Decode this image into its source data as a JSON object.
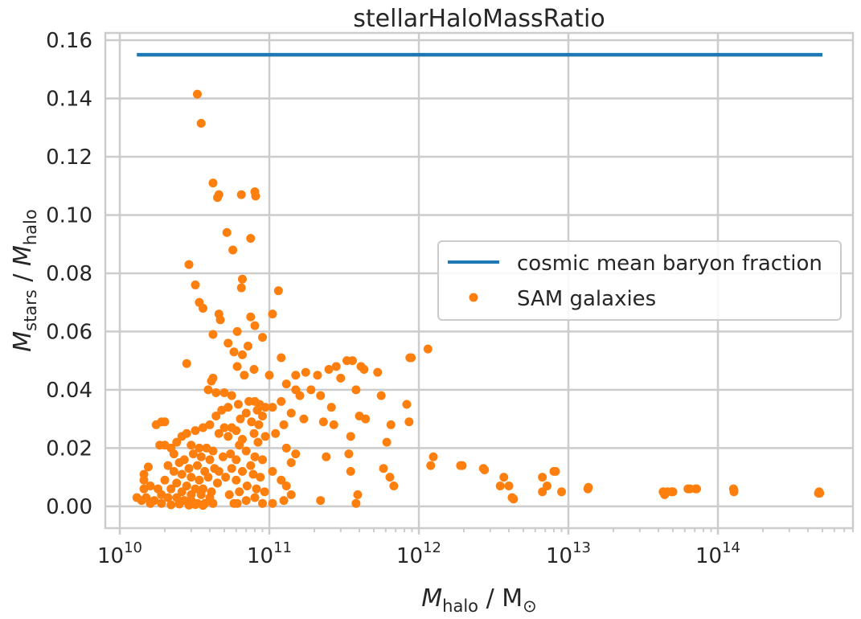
{
  "chart_data": {
    "type": "scatter",
    "title": "stellarHaloMassRatio",
    "xlabel": {
      "main": "M",
      "sub": "halo",
      "rest": " / M",
      "sun": "⊙"
    },
    "ylabel": {
      "main": "M",
      "sub1": "stars",
      "mid": " / ",
      "main2": "M",
      "sub2": "halo"
    },
    "x_scale": "log",
    "xlim": [
      8000000000.0,
      800000000000000.0
    ],
    "ylim": [
      -0.0075,
      0.1625
    ],
    "x_tick_labels": [
      {
        "base": "10",
        "exp": "10",
        "value": 10000000000.0
      },
      {
        "base": "10",
        "exp": "11",
        "value": 100000000000.0
      },
      {
        "base": "10",
        "exp": "12",
        "value": 1000000000000.0
      },
      {
        "base": "10",
        "exp": "13",
        "value": 10000000000000.0
      },
      {
        "base": "10",
        "exp": "14",
        "value": 100000000000000.0
      }
    ],
    "y_ticks": [
      0.0,
      0.02,
      0.04,
      0.06,
      0.08,
      0.1,
      0.12,
      0.14,
      0.16
    ],
    "y_tick_labels": [
      "0.00",
      "0.02",
      "0.04",
      "0.06",
      "0.08",
      "0.10",
      "0.12",
      "0.14",
      "0.16"
    ],
    "grid": true,
    "legend_position": "center-right",
    "series": [
      {
        "name": "cosmic mean baryon fraction",
        "kind": "line",
        "color": "#1f77b4",
        "x": [
          13000000000.0,
          500000000000000.0
        ],
        "y": [
          0.155,
          0.155
        ]
      },
      {
        "name": "SAM galaxies",
        "kind": "scatter",
        "color": "#ff7f0e",
        "points": [
          [
            33000000000.0,
            0.1415
          ],
          [
            35000000000.0,
            0.1315
          ],
          [
            42000000000.0,
            0.111
          ],
          [
            45000000000.0,
            0.106
          ],
          [
            46000000000.0,
            0.107
          ],
          [
            65000000000.0,
            0.107
          ],
          [
            80000000000.0,
            0.108
          ],
          [
            81000000000.0,
            0.1065
          ],
          [
            52000000000.0,
            0.094
          ],
          [
            75000000000.0,
            0.092
          ],
          [
            57000000000.0,
            0.088
          ],
          [
            29000000000.0,
            0.083
          ],
          [
            32000000000.0,
            0.076
          ],
          [
            66000000000.0,
            0.078
          ],
          [
            65000000000.0,
            0.075
          ],
          [
            34000000000.0,
            0.07
          ],
          [
            36000000000.0,
            0.068
          ],
          [
            115000000000.0,
            0.074
          ],
          [
            105000000000.0,
            0.066
          ],
          [
            46000000000.0,
            0.066
          ],
          [
            47000000000.0,
            0.064
          ],
          [
            75000000000.0,
            0.065
          ],
          [
            80000000000.0,
            0.062
          ],
          [
            42000000000.0,
            0.059
          ],
          [
            61000000000.0,
            0.06
          ],
          [
            90000000000.0,
            0.058
          ],
          [
            53000000000.0,
            0.056
          ],
          [
            72000000000.0,
            0.055
          ],
          [
            58000000000.0,
            0.053
          ],
          [
            66000000000.0,
            0.052
          ],
          [
            28000000000.0,
            0.049
          ],
          [
            61000000000.0,
            0.048
          ],
          [
            42000000000.0,
            0.044
          ],
          [
            41000000000.0,
            0.043
          ],
          [
            39000000000.0,
            0.04
          ],
          [
            44000000000.0,
            0.039
          ],
          [
            120000000000.0,
            0.051
          ],
          [
            100000000000.0,
            0.045
          ],
          [
            68000000000.0,
            0.045
          ],
          [
            79000000000.0,
            0.047
          ],
          [
            150000000000.0,
            0.045
          ],
          [
            175000000000.0,
            0.046
          ],
          [
            210000000000.0,
            0.045
          ],
          [
            250000000000.0,
            0.047
          ],
          [
            280000000000.0,
            0.048
          ],
          [
            330000000000.0,
            0.05
          ],
          [
            360000000000.0,
            0.05
          ],
          [
            410000000000.0,
            0.048
          ],
          [
            430000000000.0,
            0.047
          ],
          [
            530000000000.0,
            0.046
          ],
          [
            1150000000000.0,
            0.054
          ],
          [
            890000000000.0,
            0.051
          ],
          [
            870000000000.0,
            0.051
          ],
          [
            560000000000.0,
            0.038
          ],
          [
            830000000000.0,
            0.035
          ],
          [
            650000000000.0,
            0.028
          ],
          [
            860000000000.0,
            0.029
          ],
          [
            300000000000.0,
            0.044
          ],
          [
            380000000000.0,
            0.04
          ],
          [
            220000000000.0,
            0.038
          ],
          [
            260000000000.0,
            0.034
          ],
          [
            400000000000.0,
            0.031
          ],
          [
            440000000000.0,
            0.03
          ],
          [
            350000000000.0,
            0.024
          ],
          [
            610000000000.0,
            0.022
          ],
          [
            130000000000.0,
            0.042
          ],
          [
            150000000000.0,
            0.04
          ],
          [
            190000000000.0,
            0.04
          ],
          [
            160000000000.0,
            0.038
          ],
          [
            120000000000.0,
            0.036
          ],
          [
            105000000000.0,
            0.034
          ],
          [
            140000000000.0,
            0.032
          ],
          [
            170000000000.0,
            0.03
          ],
          [
            125000000000.0,
            0.028
          ],
          [
            110000000000.0,
            0.025
          ],
          [
            230000000000.0,
            0.029
          ],
          [
            270000000000.0,
            0.028
          ],
          [
            130000000000.0,
            0.02
          ],
          [
            150000000000.0,
            0.018
          ],
          [
            140000000000.0,
            0.015
          ],
          [
            240000000000.0,
            0.017
          ],
          [
            105000000000.0,
            0.012
          ],
          [
            120000000000.0,
            0.009
          ],
          [
            130000000000.0,
            0.007
          ],
          [
            140000000000.0,
            0.004
          ],
          [
            125000000000.0,
            0.002
          ],
          [
            105000000000.0,
            0.001
          ],
          [
            220000000000.0,
            0.002
          ],
          [
            390000000000.0,
            0.004
          ],
          [
            380000000000.0,
            0.001
          ],
          [
            580000000000.0,
            0.013
          ],
          [
            640000000000.0,
            0.01
          ],
          [
            680000000000.0,
            0.007
          ],
          [
            340000000000.0,
            0.018
          ],
          [
            350000000000.0,
            0.012
          ],
          [
            1200000000000.0,
            0.014
          ],
          [
            1250000000000.0,
            0.017
          ],
          [
            1900000000000.0,
            0.014
          ],
          [
            1950000000000.0,
            0.014
          ],
          [
            2700000000000.0,
            0.013
          ],
          [
            2750000000000.0,
            0.0125
          ],
          [
            3700000000000.0,
            0.01
          ],
          [
            3500000000000.0,
            0.007
          ],
          [
            4000000000000.0,
            0.007
          ],
          [
            4200000000000.0,
            0.003
          ],
          [
            4300000000000.0,
            0.0025
          ],
          [
            6700000000000.0,
            0.01
          ],
          [
            6700000000000.0,
            0.005
          ],
          [
            7200000000000.0,
            0.007
          ],
          [
            8000000000000.0,
            0.012
          ],
          [
            8200000000000.0,
            0.012
          ],
          [
            9000000000000.0,
            0.005
          ],
          [
            13500000000000.0,
            0.006
          ],
          [
            13600000000000.0,
            0.0065
          ],
          [
            43000000000000.0,
            0.005
          ],
          [
            44000000000000.0,
            0.004
          ],
          [
            46000000000000.0,
            0.005
          ],
          [
            49000000000000.0,
            0.005
          ],
          [
            50000000000000.0,
            0.005
          ],
          [
            63000000000000.0,
            0.006
          ],
          [
            65000000000000.0,
            0.006
          ],
          [
            71000000000000.0,
            0.006
          ],
          [
            72000000000000.0,
            0.006
          ],
          [
            127000000000000.0,
            0.006
          ],
          [
            128000000000000.0,
            0.0055
          ],
          [
            128000000000000.0,
            0.005
          ],
          [
            470000000000000.0,
            0.0045
          ],
          [
            480000000000000.0,
            0.0045
          ],
          [
            475000000000000.0,
            0.005
          ],
          [
            80000000000.0,
            0.036
          ],
          [
            73000000000.0,
            0.036
          ],
          [
            86000000000.0,
            0.035
          ],
          [
            94000000000.0,
            0.034
          ],
          [
            83000000000.0,
            0.033
          ],
          [
            70000000000.0,
            0.032
          ],
          [
            90000000000.0,
            0.031
          ],
          [
            64000000000.0,
            0.03
          ],
          [
            76000000000.0,
            0.029
          ],
          [
            85000000000.0,
            0.028
          ],
          [
            56000000000.0,
            0.027
          ],
          [
            60000000000.0,
            0.026
          ],
          [
            79000000000.0,
            0.025
          ],
          [
            94000000000.0,
            0.024
          ],
          [
            66000000000.0,
            0.023
          ],
          [
            50000000000.0,
            0.027
          ],
          [
            46000000000.0,
            0.025
          ],
          [
            53000000000.0,
            0.024
          ],
          [
            63000000000.0,
            0.021
          ],
          [
            84000000000.0,
            0.022
          ],
          [
            70000000000.0,
            0.019
          ],
          [
            55000000000.0,
            0.018
          ],
          [
            49000000000.0,
            0.017
          ],
          [
            60000000000.0,
            0.016
          ],
          [
            80000000000.0,
            0.017
          ],
          [
            90000000000.0,
            0.016
          ],
          [
            75000000000.0,
            0.014
          ],
          [
            66000000000.0,
            0.012
          ],
          [
            56000000000.0,
            0.013
          ],
          [
            46000000000.0,
            0.012
          ],
          [
            78000000000.0,
            0.011
          ],
          [
            87000000000.0,
            0.01
          ],
          [
            60000000000.0,
            0.009
          ],
          [
            51000000000.0,
            0.01
          ],
          [
            45000000000.0,
            0.008
          ],
          [
            71000000000.0,
            0.007
          ],
          [
            82000000000.0,
            0.006
          ],
          [
            93000000000.0,
            0.005
          ],
          [
            63000000000.0,
            0.005
          ],
          [
            54000000000.0,
            0.004
          ],
          [
            80000000000.0,
            0.003
          ],
          [
            70000000000.0,
            0.002
          ],
          [
            90000000000.0,
            0.001
          ],
          [
            61000000000.0,
            0.001
          ],
          [
            58000000000.0,
            0.001
          ],
          [
            44000000000.0,
            0.031
          ],
          [
            40000000000.0,
            0.028
          ],
          [
            36000000000.0,
            0.027
          ],
          [
            32000000000.0,
            0.026
          ],
          [
            28000000000.0,
            0.025
          ],
          [
            26000000000.0,
            0.024
          ],
          [
            24000000000.0,
            0.022
          ],
          [
            30000000000.0,
            0.021
          ],
          [
            34000000000.0,
            0.02
          ],
          [
            38000000000.0,
            0.02
          ],
          [
            42000000000.0,
            0.019
          ],
          [
            22000000000.0,
            0.02
          ],
          [
            20000000000.0,
            0.021
          ],
          [
            31000000000.0,
            0.018
          ],
          [
            35000000000.0,
            0.017
          ],
          [
            27000000000.0,
            0.016
          ],
          [
            40000000000.0,
            0.016
          ],
          [
            25000000000.0,
            0.015
          ],
          [
            33000000000.0,
            0.014
          ],
          [
            29000000000.0,
            0.013
          ],
          [
            37000000000.0,
            0.012
          ],
          [
            43000000000.0,
            0.013
          ],
          [
            21000000000.0,
            0.014
          ],
          [
            23000000000.0,
            0.012
          ],
          [
            26000000000.0,
            0.011
          ],
          [
            30000000000.0,
            0.01
          ],
          [
            34000000000.0,
            0.009
          ],
          [
            39000000000.0,
            0.01
          ],
          [
            45000000000.0,
            0.008
          ],
          [
            20000000000.0,
            0.009
          ],
          [
            24000000000.0,
            0.008
          ],
          [
            28000000000.0,
            0.007
          ],
          [
            32000000000.0,
            0.006
          ],
          [
            36000000000.0,
            0.006
          ],
          [
            41000000000.0,
            0.005
          ],
          [
            22000000000.0,
            0.006
          ],
          [
            26000000000.0,
            0.005
          ],
          [
            30000000000.0,
            0.004
          ],
          [
            35000000000.0,
            0.004
          ],
          [
            40000000000.0,
            0.003
          ],
          [
            18000000000.0,
            0.006
          ],
          [
            19000000000.0,
            0.004
          ],
          [
            21000000000.0,
            0.003
          ],
          [
            24000000000.0,
            0.003
          ],
          [
            27000000000.0,
            0.002
          ],
          [
            30000000000.0,
            0.002
          ],
          [
            33000000000.0,
            0.001
          ],
          [
            37000000000.0,
            0.001
          ],
          [
            42000000000.0,
            0.001
          ],
          [
            17000000000.0,
            0.002
          ],
          [
            15000000000.0,
            0.003
          ],
          [
            14000000000.0,
            0.002
          ],
          [
            13000000000.0,
            0.003
          ],
          [
            16000000000.0,
            0.001
          ],
          [
            19000000000.0,
            0.001
          ],
          [
            22000000000.0,
            0.0005
          ],
          [
            25000000000.0,
            0.0008
          ],
          [
            29000000000.0,
            0.0004
          ],
          [
            32000000000.0,
            0.0006
          ],
          [
            36000000000.0,
            0.0003
          ],
          [
            14500000000.0,
            0.011
          ],
          [
            15500000000.0,
            0.0135
          ],
          [
            14500000000.0,
            0.009
          ],
          [
            14500000000.0,
            0.006
          ],
          [
            17500000000.0,
            0.028
          ],
          [
            19000000000.0,
            0.029
          ],
          [
            20000000000.0,
            0.029
          ],
          [
            18500000000.0,
            0.021
          ],
          [
            23000000000.0,
            0.018
          ],
          [
            16000000000.0,
            0.007
          ],
          [
            50000000000.0,
            0.039
          ],
          [
            56000000000.0,
            0.038
          ],
          [
            62000000000.0,
            0.035
          ],
          [
            53000000000.0,
            0.034
          ],
          [
            48000000000.0,
            0.033
          ]
        ]
      }
    ]
  }
}
